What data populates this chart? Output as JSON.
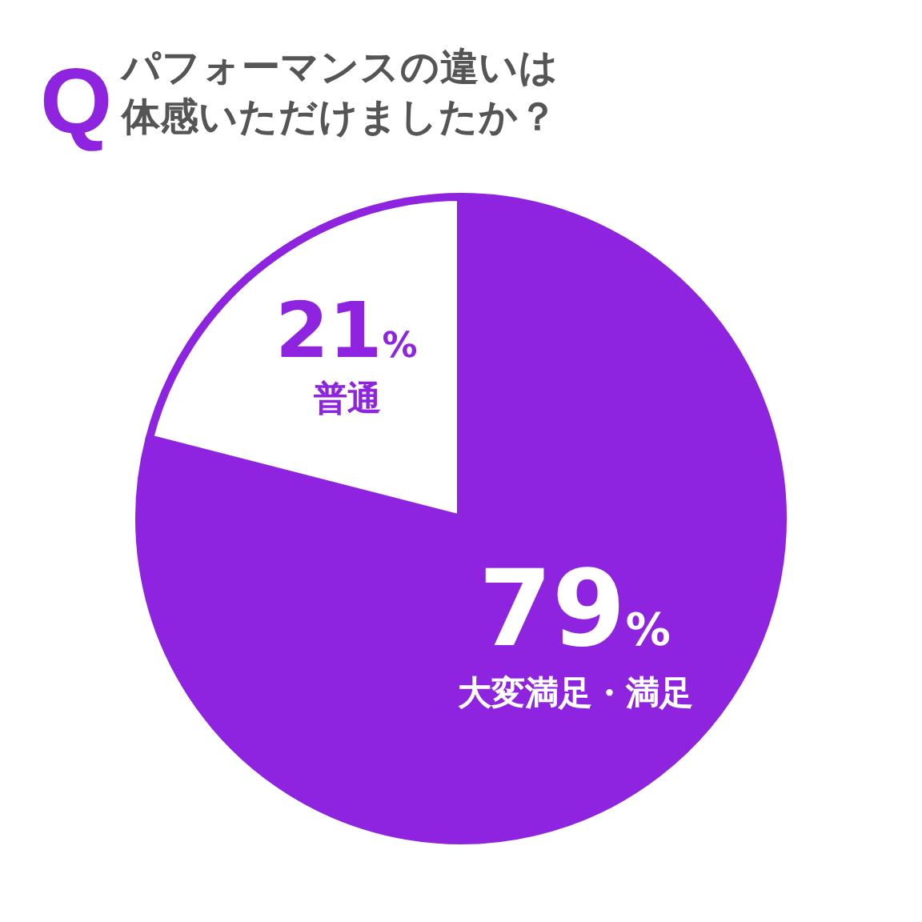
{
  "chart_data": {
    "type": "pie",
    "title": "パフォーマンスの違いは体感いただけましたか？",
    "annotations": [
      "Q"
    ],
    "categories": [
      "大変満足・満足",
      "普通"
    ],
    "values": [
      79,
      21
    ],
    "colors": [
      "#8f24e0",
      "#ffffff"
    ],
    "value_labels": [
      "79%",
      "21%"
    ]
  }
}
